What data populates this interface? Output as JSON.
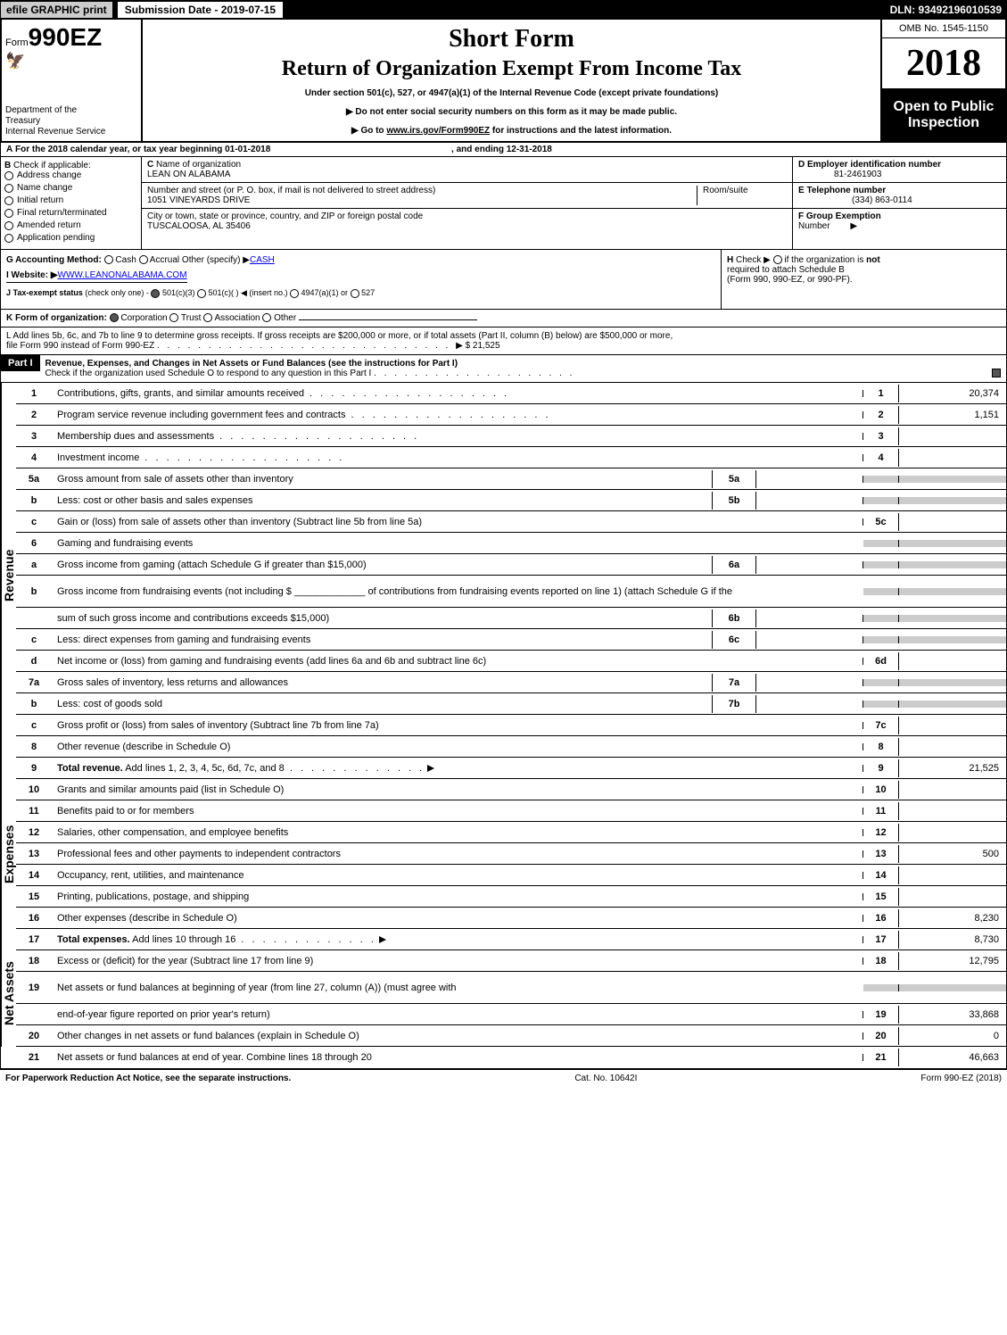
{
  "topbar": {
    "efile": "efile GRAPHIC print",
    "submission": "Submission Date - 2019-07-15",
    "dln": "DLN: 93492196010539"
  },
  "header": {
    "form_prefix": "Form",
    "form_number": "990EZ",
    "short_form": "Short Form",
    "return_title": "Return of Organization Exempt From Income Tax",
    "subtitle": "Under section 501(c), 527, or 4947(a)(1) of the Internal Revenue Code (except private foundations)",
    "instr1": "▶ Do not enter social security numbers on this form as it may be made public.",
    "instr2_prefix": "▶ Go to ",
    "instr2_link": "www.irs.gov/Form990EZ",
    "instr2_suffix": " for instructions and the latest information.",
    "dept1": "Department of the",
    "dept2": "Treasury",
    "dept3": "Internal Revenue Service",
    "omb": "OMB No. 1545-1150",
    "year": "2018",
    "inspection1": "Open to Public",
    "inspection2": "Inspection"
  },
  "section_a": {
    "label_a": "A",
    "text": "For the 2018 calendar year, or tax year beginning 01-01-2018",
    "ending": ", and ending 12-31-2018"
  },
  "section_b": {
    "label": "B",
    "check_if": "Check if applicable:",
    "items": [
      "Address change",
      "Name change",
      "Initial return",
      "Final return/terminated",
      "Amended return",
      "Application pending"
    ]
  },
  "section_c": {
    "label": "C",
    "name_label": "Name of organization",
    "name": "LEAN ON ALABAMA",
    "addr_label": "Number and street (or P. O. box, if mail is not delivered to street address)",
    "addr": "1051 VINEYARDS DRIVE",
    "room_label": "Room/suite",
    "city_label": "City or town, state or province, country, and ZIP or foreign postal code",
    "city": "TUSCALOOSA, AL 35406"
  },
  "section_d": {
    "d_label": "D Employer identification number",
    "d_value": "81-2461903",
    "e_label": "E Telephone number",
    "e_value": "(334) 863-0114",
    "f_label": "F Group Exemption",
    "f_label2": "Number",
    "f_arrow": "▶"
  },
  "section_g": {
    "g_label": "G Accounting Method:",
    "cash": "Cash",
    "accrual": "Accrual",
    "other": "Other (specify) ▶",
    "other_val": "CASH",
    "i_label": "I Website: ▶",
    "i_value": "WWW.LEANONALABAMA.COM",
    "j_label": "J Tax-exempt status",
    "j_note": "(check only one) -",
    "j_501c3": "501(c)(3)",
    "j_501c": "501(c)(  )",
    "j_insert": "◀ (insert no.)",
    "j_4947": "4947(a)(1) or",
    "j_527": "527"
  },
  "section_h": {
    "h_label": "H",
    "h_check": "Check ▶",
    "h_text1": "if the organization is",
    "h_not": "not",
    "h_text2": "required to attach Schedule B",
    "h_text3": "(Form 990, 990-EZ, or 990-PF)."
  },
  "section_k": {
    "label": "K Form of organization:",
    "corp": "Corporation",
    "trust": "Trust",
    "assoc": "Association",
    "other": "Other"
  },
  "section_l": {
    "text": "L Add lines 5b, 6c, and 7b to line 9 to determine gross receipts. If gross receipts are $200,000 or more, or if total assets (Part II, column (B) below) are $500,000 or more,",
    "text2": "file Form 990 instead of Form 990-EZ",
    "amount": "▶ $ 21,525"
  },
  "part1": {
    "label": "Part I",
    "title": "Revenue, Expenses, and Changes in Net Assets or Fund Balances (see the instructions for Part I)",
    "check_text": "Check if the organization used Schedule O to respond to any question in this Part I"
  },
  "sections": {
    "revenue": "Revenue",
    "expenses": "Expenses",
    "netassets": "Net Assets"
  },
  "lines": [
    {
      "section": "revenue",
      "num": "1",
      "desc": "Contributions, gifts, grants, and similar amounts received",
      "dots": true,
      "rnum": "1",
      "rval": "20,374"
    },
    {
      "section": "revenue",
      "num": "2",
      "desc": "Program service revenue including government fees and contracts",
      "dots": true,
      "rnum": "2",
      "rval": "1,151"
    },
    {
      "section": "revenue",
      "num": "3",
      "desc": "Membership dues and assessments",
      "dots": true,
      "rnum": "3",
      "rval": ""
    },
    {
      "section": "revenue",
      "num": "4",
      "desc": "Investment income",
      "dots": true,
      "rnum": "4",
      "rval": ""
    },
    {
      "section": "revenue",
      "num": "5a",
      "desc": "Gross amount from sale of assets other than inventory",
      "mid_num": "5a",
      "shaded_right": true
    },
    {
      "section": "revenue",
      "num": "b",
      "desc": "Less: cost or other basis and sales expenses",
      "mid_num": "5b",
      "shaded_right": true
    },
    {
      "section": "revenue",
      "num": "c",
      "desc": "Gain or (loss) from sale of assets other than inventory (Subtract line 5b from line 5a)",
      "rnum": "5c",
      "rval": ""
    },
    {
      "section": "revenue",
      "num": "6",
      "desc": "Gaming and fundraising events",
      "shaded_right": true,
      "no_mid": true
    },
    {
      "section": "revenue",
      "num": "a",
      "desc": "Gross income from gaming (attach Schedule G if greater than $15,000)",
      "mid_num": "6a",
      "shaded_right": true
    },
    {
      "section": "revenue",
      "num": "b",
      "desc": "Gross income from fundraising events (not including $ _____________ of contributions from fundraising events reported on line 1) (attach Schedule G if the",
      "multi": true,
      "shaded_right": true,
      "no_mid": true
    },
    {
      "section": "revenue",
      "num": "",
      "desc": "sum of such gross income and contributions exceeds $15,000)",
      "mid_num": "6b",
      "shaded_right": true
    },
    {
      "section": "revenue",
      "num": "c",
      "desc": "Less: direct expenses from gaming and fundraising events",
      "mid_num": "6c",
      "shaded_right": true
    },
    {
      "section": "revenue",
      "num": "d",
      "desc": "Net income or (loss) from gaming and fundraising events (add lines 6a and 6b and subtract line 6c)",
      "rnum": "6d",
      "rval": ""
    },
    {
      "section": "revenue",
      "num": "7a",
      "desc": "Gross sales of inventory, less returns and allowances",
      "mid_num": "7a",
      "shaded_right": true
    },
    {
      "section": "revenue",
      "num": "b",
      "desc": "Less: cost of goods sold",
      "mid_num": "7b",
      "shaded_right": true
    },
    {
      "section": "revenue",
      "num": "c",
      "desc": "Gross profit or (loss) from sales of inventory (Subtract line 7b from line 7a)",
      "rnum": "7c",
      "rval": ""
    },
    {
      "section": "revenue",
      "num": "8",
      "desc": "Other revenue (describe in Schedule O)",
      "rnum": "8",
      "rval": ""
    },
    {
      "section": "revenue",
      "num": "9",
      "desc": "Total revenue. Add lines 1, 2, 3, 4, 5c, 6d, 7c, and 8",
      "bold": true,
      "arrow": true,
      "rnum": "9",
      "rval": "21,525"
    },
    {
      "section": "expenses",
      "num": "10",
      "desc": "Grants and similar amounts paid (list in Schedule O)",
      "rnum": "10",
      "rval": ""
    },
    {
      "section": "expenses",
      "num": "11",
      "desc": "Benefits paid to or for members",
      "rnum": "11",
      "rval": ""
    },
    {
      "section": "expenses",
      "num": "12",
      "desc": "Salaries, other compensation, and employee benefits",
      "rnum": "12",
      "rval": ""
    },
    {
      "section": "expenses",
      "num": "13",
      "desc": "Professional fees and other payments to independent contractors",
      "rnum": "13",
      "rval": "500"
    },
    {
      "section": "expenses",
      "num": "14",
      "desc": "Occupancy, rent, utilities, and maintenance",
      "rnum": "14",
      "rval": ""
    },
    {
      "section": "expenses",
      "num": "15",
      "desc": "Printing, publications, postage, and shipping",
      "rnum": "15",
      "rval": ""
    },
    {
      "section": "expenses",
      "num": "16",
      "desc": "Other expenses (describe in Schedule O)",
      "rnum": "16",
      "rval": "8,230"
    },
    {
      "section": "expenses",
      "num": "17",
      "desc": "Total expenses. Add lines 10 through 16",
      "bold": true,
      "arrow": true,
      "rnum": "17",
      "rval": "8,730"
    },
    {
      "section": "netassets",
      "num": "18",
      "desc": "Excess or (deficit) for the year (Subtract line 17 from line 9)",
      "rnum": "18",
      "rval": "12,795"
    },
    {
      "section": "netassets",
      "num": "19",
      "desc": "Net assets or fund balances at beginning of year (from line 27, column (A)) (must agree with",
      "multi": true,
      "shaded_right": true,
      "no_mid": true
    },
    {
      "section": "netassets",
      "num": "",
      "desc": "end-of-year figure reported on prior year's return)",
      "rnum": "19",
      "rval": "33,868"
    },
    {
      "section": "netassets",
      "num": "20",
      "desc": "Other changes in net assets or fund balances (explain in Schedule O)",
      "rnum": "20",
      "rval": "0"
    },
    {
      "section": "netassets",
      "num": "21",
      "desc": "Net assets or fund balances at end of year. Combine lines 18 through 20",
      "rnum": "21",
      "rval": "46,663"
    }
  ],
  "footer": {
    "left": "For Paperwork Reduction Act Notice, see the separate instructions.",
    "center": "Cat. No. 10642I",
    "right": "Form 990-EZ (2018)"
  }
}
